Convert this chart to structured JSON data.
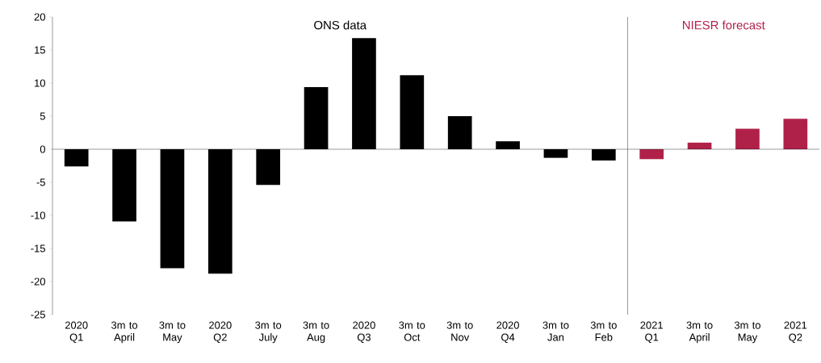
{
  "chart_data": {
    "type": "bar",
    "categories": [
      "2020 Q1",
      "3m to April",
      "3m to May",
      "2020 Q2",
      "3m to July",
      "3m to Aug",
      "2020 Q3",
      "3m to Oct",
      "3m to Nov",
      "2020 Q4",
      "3m to Jan",
      "3m to Feb",
      "2021 Q1",
      "3m to April",
      "3m to May",
      "2021 Q2"
    ],
    "values": [
      -2.6,
      -10.9,
      -18.0,
      -18.8,
      -5.4,
      9.4,
      16.8,
      11.2,
      5.0,
      1.2,
      -1.3,
      -1.7,
      -1.5,
      1.0,
      3.1,
      4.6
    ],
    "colors": [
      "#000000",
      "#000000",
      "#000000",
      "#000000",
      "#000000",
      "#000000",
      "#000000",
      "#000000",
      "#000000",
      "#000000",
      "#000000",
      "#000000",
      "#b0214a",
      "#b0214a",
      "#b0214a",
      "#b0214a"
    ],
    "ylim": [
      -25,
      20
    ],
    "yticks": [
      -25,
      -20,
      -15,
      -10,
      -5,
      0,
      5,
      10,
      15,
      20
    ],
    "annotations": [
      "ONS data",
      "NIESR forecast"
    ]
  }
}
